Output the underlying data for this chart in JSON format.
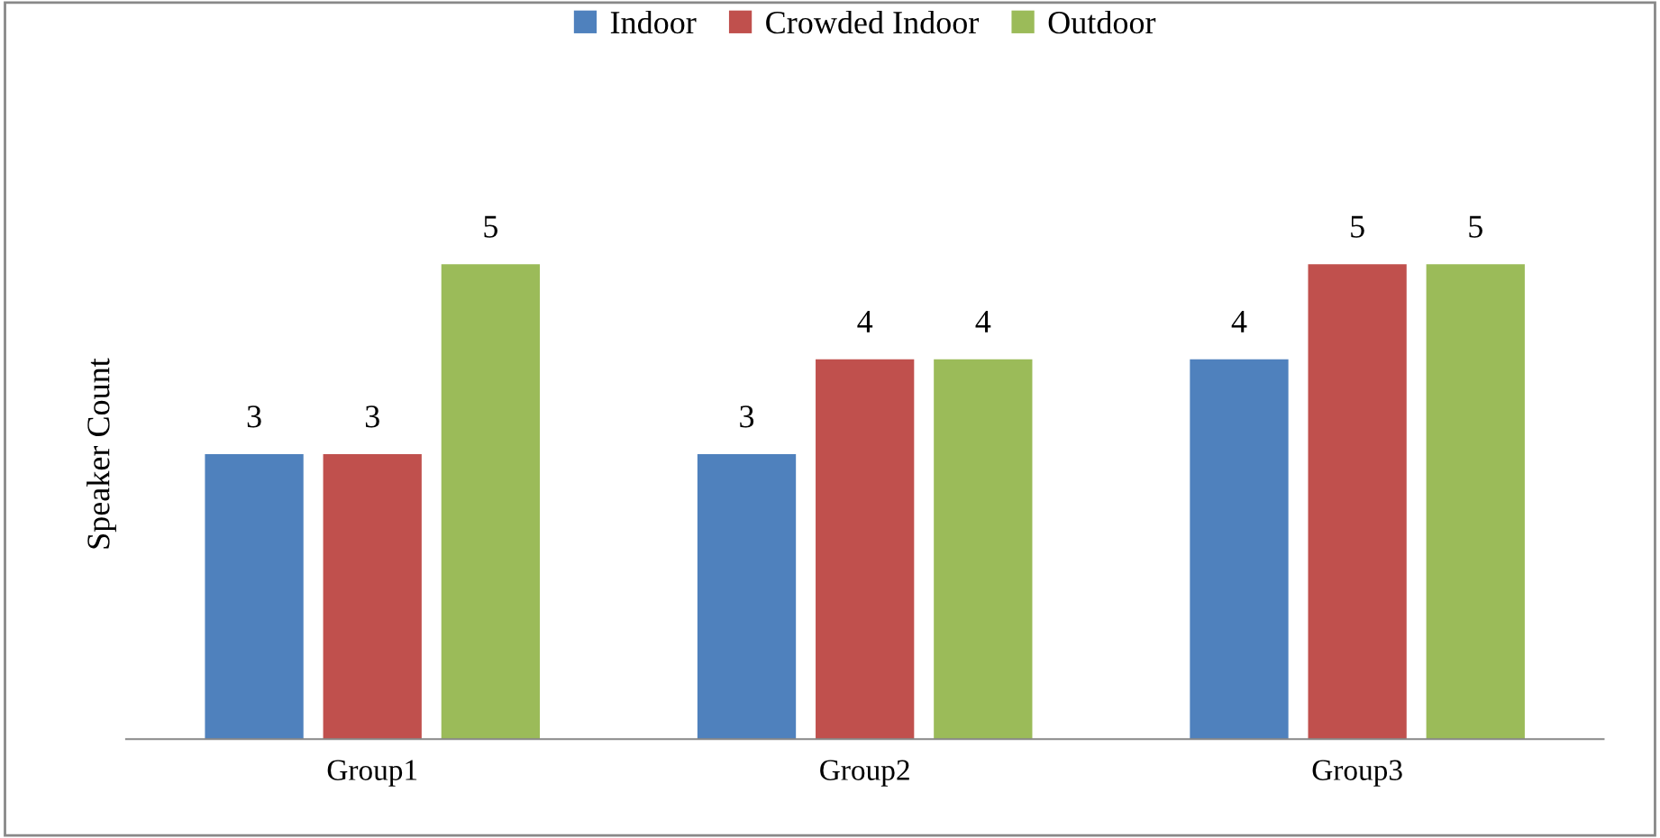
{
  "chart_data": {
    "type": "bar",
    "ylabel": "Speaker Count",
    "categories": [
      "Group1",
      "Group2",
      "Group3"
    ],
    "series": [
      {
        "name": "Indoor",
        "color": "#4f81bd",
        "values": [
          3,
          3,
          4
        ]
      },
      {
        "name": "Crowded Indoor",
        "color": "#c0504d",
        "values": [
          3,
          4,
          5
        ]
      },
      {
        "name": "Outdoor",
        "color": "#9bbb59",
        "values": [
          5,
          4,
          5
        ]
      }
    ],
    "data_labels": true,
    "legend": "top",
    "grid": false
  }
}
